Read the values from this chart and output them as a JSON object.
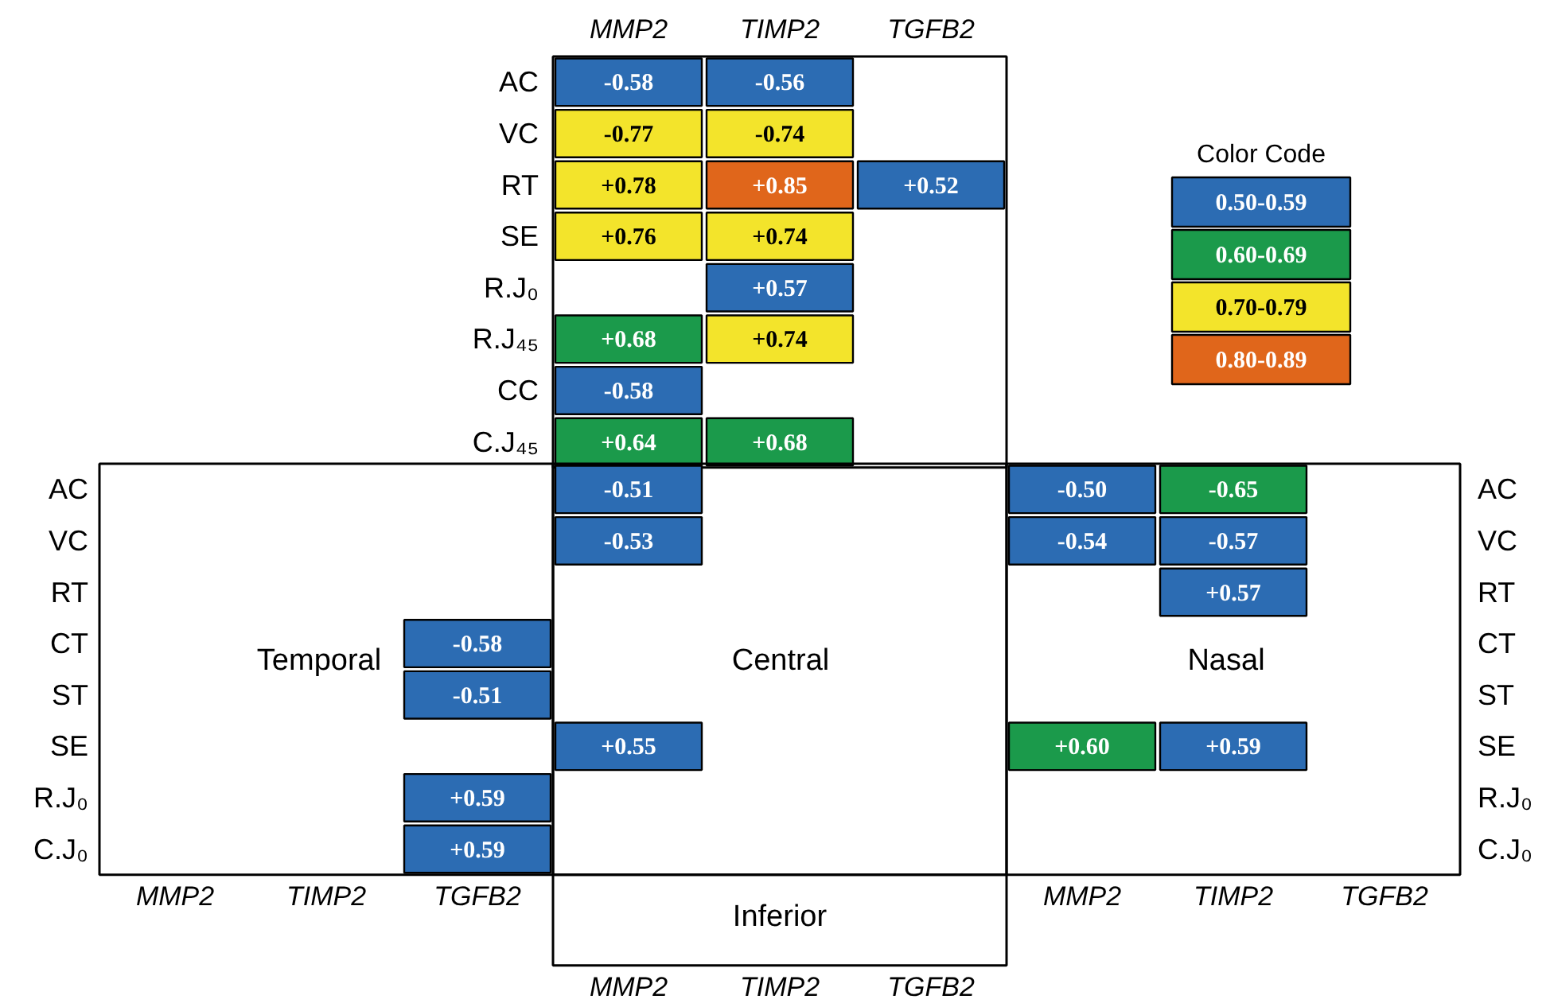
{
  "chart_data": [
    {
      "type": "heatmap",
      "categories": [
        "MMP2",
        "TIMP2",
        "TGFB2"
      ],
      "y_categories": [
        "AC",
        "VC",
        "RT",
        "SE",
        "R.J₀",
        "R.J₄₅",
        "CC",
        "C.J₄₅"
      ],
      "cells": [
        [
          -0.58,
          -0.56,
          null
        ],
        [
          -0.77,
          -0.74,
          null
        ],
        [
          0.78,
          0.85,
          0.52
        ],
        [
          0.76,
          0.74,
          null
        ],
        [
          null,
          0.57,
          null
        ],
        [
          0.68,
          0.74,
          null
        ],
        [
          -0.58,
          null,
          null
        ],
        [
          0.64,
          0.68,
          null
        ]
      ],
      "cell_labels": [
        [
          "-0.58",
          "-0.56",
          null
        ],
        [
          "-0.77",
          "-0.74",
          null
        ],
        [
          "+0.78",
          "+0.85",
          "+0.52"
        ],
        [
          "+0.76",
          "+0.74",
          null
        ],
        [
          null,
          "+0.57",
          null
        ],
        [
          "+0.68",
          "+0.74",
          null
        ],
        [
          "-0.58",
          null,
          null
        ],
        [
          "+0.64",
          "+0.68",
          null
        ]
      ],
      "colors": [
        [
          "#2c6cb3",
          "#2c6cb3",
          null
        ],
        [
          "#f3e42b",
          "#f3e42b",
          null
        ],
        [
          "#f3e42b",
          "#e0661b",
          "#2c6cb3"
        ],
        [
          "#f3e42b",
          "#f3e42b",
          null
        ],
        [
          null,
          "#2c6cb3",
          null
        ],
        [
          "#1b9a4b",
          "#f3e42b",
          null
        ],
        [
          "#2c6cb3",
          null,
          null
        ],
        [
          "#1b9a4b",
          "#1b9a4b",
          null
        ]
      ]
    },
    {
      "type": "heatmap",
      "categories": [
        "MMP2",
        "TIMP2",
        "TGFB2",
        null,
        null,
        null,
        "MMP2",
        "TIMP2",
        "TGFB2"
      ],
      "y_categories": [
        "AC",
        "VC",
        "RT",
        "CT",
        "ST",
        "SE",
        "R.J₀",
        "C.J₀"
      ],
      "y2_categories": [
        "AC",
        "VC",
        "RT",
        "CT",
        "ST",
        "SE",
        "R.J₀",
        "C.J₀"
      ],
      "annotations": [
        "Temporal",
        "Central",
        "Nasal"
      ],
      "cells": [
        [
          null,
          null,
          null,
          -0.51,
          null,
          null,
          -0.5,
          -0.65,
          null
        ],
        [
          null,
          null,
          null,
          -0.53,
          null,
          null,
          -0.54,
          -0.57,
          null
        ],
        [
          null,
          null,
          null,
          null,
          null,
          null,
          null,
          0.57,
          null
        ],
        [
          null,
          null,
          -0.58,
          null,
          null,
          null,
          null,
          null,
          null
        ],
        [
          null,
          null,
          -0.51,
          null,
          null,
          null,
          null,
          null,
          null
        ],
        [
          null,
          null,
          null,
          0.55,
          null,
          null,
          0.6,
          0.59,
          null
        ],
        [
          null,
          null,
          0.59,
          null,
          null,
          null,
          null,
          null,
          null
        ],
        [
          null,
          null,
          0.59,
          null,
          null,
          null,
          null,
          null,
          null
        ]
      ],
      "cell_labels": [
        [
          null,
          null,
          null,
          "-0.51",
          null,
          null,
          "-0.50",
          "-0.65",
          null
        ],
        [
          null,
          null,
          null,
          "-0.53",
          null,
          null,
          "-0.54",
          "-0.57",
          null
        ],
        [
          null,
          null,
          null,
          null,
          null,
          null,
          null,
          "+0.57",
          null
        ],
        [
          null,
          null,
          "-0.58",
          null,
          null,
          null,
          null,
          null,
          null
        ],
        [
          null,
          null,
          "-0.51",
          null,
          null,
          null,
          null,
          null,
          null
        ],
        [
          null,
          null,
          null,
          "+0.55",
          null,
          null,
          "+0.60",
          "+0.59",
          null
        ],
        [
          null,
          null,
          "+0.59",
          null,
          null,
          null,
          null,
          null,
          null
        ],
        [
          null,
          null,
          "+0.59",
          null,
          null,
          null,
          null,
          null,
          null
        ]
      ],
      "colors": [
        [
          null,
          null,
          null,
          "#2c6cb3",
          null,
          null,
          "#2c6cb3",
          "#1b9a4b",
          null
        ],
        [
          null,
          null,
          null,
          "#2c6cb3",
          null,
          null,
          "#2c6cb3",
          "#2c6cb3",
          null
        ],
        [
          null,
          null,
          null,
          null,
          null,
          null,
          null,
          "#2c6cb3",
          null
        ],
        [
          null,
          null,
          "#2c6cb3",
          null,
          null,
          null,
          null,
          null,
          null
        ],
        [
          null,
          null,
          "#2c6cb3",
          null,
          null,
          null,
          null,
          null,
          null
        ],
        [
          null,
          null,
          null,
          "#2c6cb3",
          null,
          null,
          "#1b9a4b",
          "#2c6cb3",
          null
        ],
        [
          null,
          null,
          "#2c6cb3",
          null,
          null,
          null,
          null,
          null,
          null
        ],
        [
          null,
          null,
          "#2c6cb3",
          null,
          null,
          null,
          null,
          null,
          null
        ]
      ]
    },
    {
      "type": "other",
      "title": "Inferior",
      "categories": [
        "MMP2",
        "TIMP2",
        "TGFB2"
      ]
    },
    {
      "type": "other",
      "title": "Color Code",
      "categories": [
        "0.50-0.59",
        "0.60-0.69",
        "0.70-0.79",
        "0.80-0.89"
      ],
      "colors": [
        "#2c6cb3",
        "#1b9a4b",
        "#f3e42b",
        "#e0661b"
      ]
    }
  ]
}
